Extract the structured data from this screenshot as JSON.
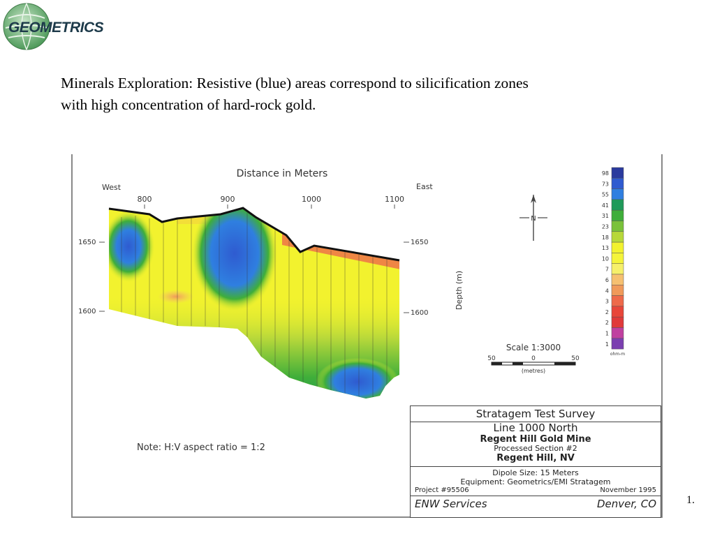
{
  "logo": {
    "text": "GEOMETRICS"
  },
  "caption": {
    "line1": "Minerals Exploration:  Resistive (blue) areas correspond to silicification zones",
    "line2": "with high concentration of hard-rock gold."
  },
  "section": {
    "axis_title": "Distance in Meters",
    "west_label": "West",
    "east_label": "East",
    "distance_ticks": [
      "800",
      "900",
      "1000",
      "1100"
    ],
    "elevation_ticks_left": [
      "1650",
      "1600"
    ],
    "elevation_ticks_right": [
      "1650",
      "1600"
    ],
    "depth_label": "Depth (m)",
    "north_label": "N",
    "note": "Note:   H:V aspect ratio  =  1:2"
  },
  "legend": {
    "values": [
      "98",
      "73",
      "55",
      "41",
      "31",
      "23",
      "18",
      "13",
      "10",
      "7",
      "6",
      "4",
      "3",
      "2",
      "2",
      "1",
      "1"
    ],
    "unit": "ohm-m",
    "colors": [
      "#2a3a9e",
      "#2f5bd0",
      "#2f7fe0",
      "#1f9a5a",
      "#3fae3a",
      "#7ac23a",
      "#b7d83a",
      "#f2f22e",
      "#f4f43a",
      "#f6f06a",
      "#f6c070",
      "#f09a5a",
      "#ee6a4a",
      "#e8463a",
      "#e03a3a",
      "#c040a0",
      "#7b3fb0"
    ]
  },
  "scale": {
    "label": "Scale  1:3000",
    "left": "50",
    "mid": "0",
    "right": "50",
    "unit": "(metres)"
  },
  "title_block": {
    "title": "Stratagem Test Survey",
    "line": "Line 1000 North",
    "mine": "Regent Hill Gold Mine",
    "processed": "Processed Section #2",
    "location": "Regent Hill,  NV",
    "dipole": "Dipole Size:   15 Meters",
    "equipment": "Equipment:   Geometrics/EMI Stratagem",
    "project": "Project #95506",
    "date": "November  1995",
    "company": "ENW Services",
    "city": "Denver,  CO"
  },
  "page_number": "1."
}
